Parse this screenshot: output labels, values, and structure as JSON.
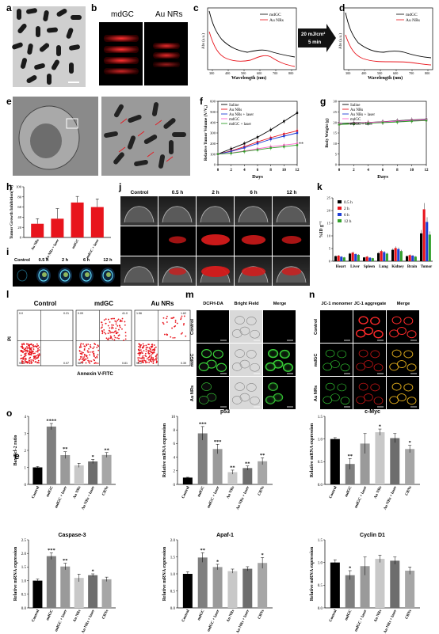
{
  "panels": {
    "a": {
      "letter": "a"
    },
    "b": {
      "letter": "b",
      "labels": [
        "mdGC",
        "Au NRs"
      ]
    },
    "c": {
      "letter": "c",
      "ylabel": "Abs (a.u.)",
      "xlabel": "Wavelength (nm)",
      "xticks": [
        "300",
        "400",
        "500",
        "600",
        "700",
        "800"
      ],
      "legend": [
        "mdGC",
        "Au NRs"
      ]
    },
    "arrow": {
      "line1": "20 mJ/cm²",
      "line2": "5 min"
    },
    "d": {
      "letter": "d",
      "ylabel": "Abs (a.u.)",
      "xlabel": "Wavelength (nm)",
      "xticks": [
        "300",
        "400",
        "500",
        "600",
        "700",
        "800"
      ],
      "legend": [
        "mdGC",
        "Au NRs"
      ]
    },
    "e": {
      "letter": "e"
    },
    "f": {
      "letter": "f"
    },
    "g": {
      "letter": "g"
    },
    "h": {
      "letter": "h"
    },
    "i": {
      "letter": "i",
      "labels": [
        "Control",
        "0.5 h",
        "2 h",
        "6 h",
        "12 h"
      ]
    },
    "j": {
      "letter": "j",
      "labels": [
        "Control",
        "0.5 h",
        "2 h",
        "6 h",
        "12 h"
      ]
    },
    "k": {
      "letter": "k"
    },
    "l": {
      "letter": "l",
      "titles": [
        "Control",
        "mdGC",
        "Au NRs"
      ],
      "ylabel": "PI",
      "xlabel": "Annexin V-FITC",
      "quad": [
        [
          "0.0",
          "0.21",
          "99.7",
          "0.07"
        ],
        [
          "0.09",
          "41.0",
          "58.1",
          "0.81"
        ],
        [
          "1.56",
          "1.62",
          "96.2",
          "0.39"
        ]
      ]
    },
    "m": {
      "letter": "m",
      "cols": [
        "DCFH-DA",
        "Bright Field",
        "Merge"
      ],
      "rows": [
        "Control",
        "mdGC",
        "Au NRs"
      ]
    },
    "n": {
      "letter": "n",
      "cols": [
        "JC-1 monomer",
        "JC-1 aggregate",
        "Merge"
      ],
      "rows": [
        "Control",
        "mdGC",
        "Au NRs"
      ]
    },
    "o": {
      "letter": "o"
    },
    "e2": {
      "letter": "e"
    }
  },
  "colors": {
    "red": "#e8141c",
    "black": "#000000",
    "green": "#33a02c",
    "blue": "#1f3fd6",
    "pink": "#ff66cc",
    "purple": "#9933cc"
  },
  "chart_data": [
    {
      "panel": "f",
      "type": "line",
      "x": [
        0,
        2,
        4,
        6,
        8,
        10,
        12
      ],
      "xlabel": "Days",
      "ylabel": "Relative Tumor Volume (V/V₀)",
      "ylim": [
        0,
        600
      ],
      "yticks": [
        0,
        100,
        200,
        300,
        400,
        500,
        600
      ],
      "xticks": [
        0,
        2,
        4,
        6,
        8,
        10,
        12
      ],
      "series": [
        {
          "name": "Saline",
          "color": "#000000",
          "values": [
            100,
            150,
            200,
            260,
            330,
            410,
            490
          ]
        },
        {
          "name": "Au NRs",
          "color": "#e8141c",
          "values": [
            100,
            130,
            170,
            215,
            255,
            290,
            320
          ]
        },
        {
          "name": "Au NRs + laser",
          "color": "#1f3fd6",
          "values": [
            100,
            125,
            160,
            200,
            240,
            270,
            300
          ]
        },
        {
          "name": "mdGC",
          "color": "#ff66cc",
          "values": [
            100,
            110,
            130,
            150,
            170,
            185,
            200
          ]
        },
        {
          "name": "mdGC + laser",
          "color": "#33a02c",
          "values": [
            100,
            108,
            125,
            140,
            158,
            170,
            185
          ]
        }
      ],
      "annotation": "**"
    },
    {
      "panel": "g",
      "type": "line",
      "x": [
        0,
        2,
        4,
        6,
        8,
        10,
        12
      ],
      "xlabel": "Days",
      "ylabel": "Body Weight (g)",
      "ylim": [
        0,
        30
      ],
      "yticks": [
        0,
        5,
        10,
        15,
        20,
        25,
        30
      ],
      "xticks": [
        0,
        2,
        4,
        6,
        8,
        10,
        12
      ],
      "series": [
        {
          "name": "Saline",
          "color": "#000000",
          "values": [
            19.5,
            19.8,
            20.0,
            20.3,
            20.8,
            21.2,
            21.5
          ]
        },
        {
          "name": "Au NRs",
          "color": "#e8141c",
          "values": [
            19.0,
            19.4,
            19.8,
            20.0,
            20.4,
            20.8,
            21.0
          ]
        },
        {
          "name": "Au NRs + laser",
          "color": "#1f3fd6",
          "values": [
            19.2,
            19.5,
            19.7,
            20.1,
            20.5,
            20.9,
            21.2
          ]
        },
        {
          "name": "mdGC",
          "color": "#ff66cc",
          "values": [
            19.4,
            19.6,
            20.0,
            20.2,
            20.6,
            21.0,
            21.3
          ]
        },
        {
          "name": "mdGC + laser",
          "color": "#33a02c",
          "values": [
            19.0,
            19.3,
            19.6,
            19.9,
            20.2,
            20.6,
            20.9
          ]
        }
      ]
    },
    {
      "panel": "h",
      "type": "bar",
      "categories": [
        "Au NRs",
        "Au NRs + laser",
        "mdGC",
        "mdGC + laser"
      ],
      "values": [
        27,
        37,
        69,
        60
      ],
      "errors": [
        10,
        20,
        12,
        16
      ],
      "ylabel": "Tumor Growth Inhibition(%)",
      "ylim": [
        0,
        100
      ],
      "yticks": [
        0,
        20,
        40,
        60,
        80,
        100
      ],
      "color": "#e8141c"
    },
    {
      "panel": "k",
      "type": "bar",
      "categories": [
        "Heart",
        "Liver",
        "Spleen",
        "Lung",
        "Kidney",
        "Brain",
        "Tumor"
      ],
      "ylabel": "%ID g⁻¹",
      "ylim": [
        0,
        25
      ],
      "yticks": [
        0,
        5,
        10,
        15,
        20,
        25
      ],
      "series": [
        {
          "name": "0.5 h",
          "color": "#000000",
          "values": [
            2.0,
            3.0,
            1.5,
            3.2,
            4.5,
            2.0,
            11.0
          ]
        },
        {
          "name": "2 h",
          "color": "#e8141c",
          "values": [
            2.2,
            3.4,
            1.8,
            4.0,
            5.2,
            2.4,
            20.5
          ]
        },
        {
          "name": "6 h",
          "color": "#1f3fd6",
          "values": [
            1.8,
            2.8,
            1.4,
            3.6,
            4.8,
            2.2,
            15.5
          ]
        },
        {
          "name": "12 h",
          "color": "#33a02c",
          "values": [
            1.5,
            2.5,
            1.2,
            3.0,
            4.0,
            1.8,
            10.5
          ]
        }
      ]
    },
    {
      "panel": "o-1",
      "type": "bar",
      "categories": [
        "Control",
        "mdGC",
        "mdGC + laser",
        "Au NRs",
        "Au NRs + laser",
        "CBNs"
      ],
      "values": [
        1.0,
        3.4,
        1.72,
        1.12,
        1.35,
        1.73
      ],
      "errors": [
        0.05,
        0.18,
        0.2,
        0.12,
        0.12,
        0.14
      ],
      "stars": [
        "",
        "****",
        "**",
        "",
        "*",
        "**"
      ],
      "ylabel": "Bax/Bcl-2 ratio",
      "ylim": [
        0,
        4
      ],
      "yticks": [
        0,
        1,
        2,
        3,
        4
      ]
    },
    {
      "panel": "o-2",
      "type": "bar",
      "title": "p53",
      "categories": [
        "Control",
        "mdGC",
        "mdGC + laser",
        "Au NRs",
        "Au NRs + laser",
        "CBNs"
      ],
      "values": [
        1.0,
        7.5,
        5.2,
        1.8,
        2.4,
        3.4
      ],
      "errors": [
        0.05,
        1.0,
        0.7,
        0.3,
        0.3,
        0.5
      ],
      "stars": [
        "",
        "***",
        "***",
        "**",
        "**",
        "**"
      ],
      "ylabel": "Relative mRNA expression",
      "ylim": [
        0,
        10
      ],
      "yticks": [
        0,
        2,
        4,
        6,
        8,
        10
      ]
    },
    {
      "panel": "o-3",
      "type": "bar",
      "title": "c-Myc",
      "categories": [
        "Control",
        "mdGC",
        "mdGC + laser",
        "Au NRs",
        "Au NRs + laser",
        "CBNs"
      ],
      "values": [
        1.0,
        0.45,
        0.9,
        1.15,
        1.02,
        0.78
      ],
      "errors": [
        0.03,
        0.12,
        0.22,
        0.07,
        0.1,
        0.08
      ],
      "stars": [
        "",
        "**",
        "",
        "*",
        "",
        "*"
      ],
      "ylabel": "Relative mRNA expression",
      "ylim": [
        0,
        1.5
      ],
      "yticks": [
        0,
        0.5,
        1.0,
        1.5
      ]
    },
    {
      "panel": "o-4",
      "type": "bar",
      "title": "Caspase-3",
      "categories": [
        "Control",
        "mdGC",
        "mdGC + laser",
        "Au NRs",
        "Au NRs + laser",
        "CBNs"
      ],
      "values": [
        1.0,
        1.9,
        1.52,
        1.1,
        1.2,
        1.05
      ],
      "errors": [
        0.06,
        0.12,
        0.12,
        0.14,
        0.05,
        0.08
      ],
      "stars": [
        "",
        "***",
        "**",
        "",
        "*",
        ""
      ],
      "ylabel": "Relative mRNA expression",
      "ylim": [
        0,
        2.5
      ],
      "yticks": [
        0,
        0.5,
        1.0,
        1.5,
        2.0,
        2.5
      ]
    },
    {
      "panel": "o-5",
      "type": "bar",
      "title": "Apaf-1",
      "categories": [
        "Control",
        "mdGC",
        "mdGC + laser",
        "Au NRs",
        "Au NRs + laser",
        "CBNs"
      ],
      "values": [
        1.0,
        1.48,
        1.2,
        1.08,
        1.15,
        1.32
      ],
      "errors": [
        0.06,
        0.14,
        0.08,
        0.06,
        0.06,
        0.16
      ],
      "stars": [
        "",
        "**",
        "*",
        "",
        "",
        "*"
      ],
      "ylabel": "Relative mRNA expression",
      "ylim": [
        0,
        2.0
      ],
      "yticks": [
        0,
        0.5,
        1.0,
        1.5,
        2.0
      ]
    },
    {
      "panel": "o-6",
      "type": "bar",
      "title": "Cyclin D1",
      "categories": [
        "Control",
        "mdGC",
        "mdGC + laser",
        "Au NRs",
        "Au NRs + laser",
        "CBNs"
      ],
      "values": [
        1.0,
        0.72,
        0.92,
        1.08,
        1.04,
        0.82
      ],
      "errors": [
        0.06,
        0.1,
        0.2,
        0.08,
        0.08,
        0.08
      ],
      "stars": [
        "",
        "*",
        "",
        "",
        "",
        ""
      ],
      "ylabel": "Relative mRNA expression",
      "ylim": [
        0,
        1.5
      ],
      "yticks": [
        0,
        0.5,
        1.0,
        1.5
      ]
    }
  ]
}
